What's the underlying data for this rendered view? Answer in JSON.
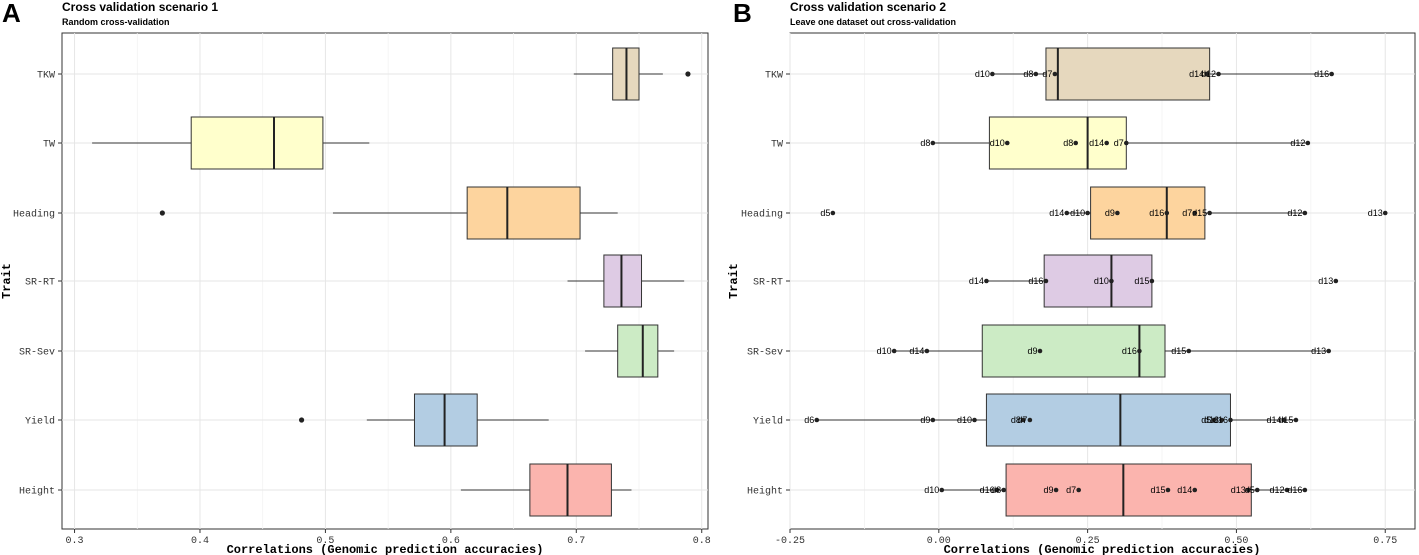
{
  "panels": [
    {
      "letter": "A",
      "title": "Cross validation scenario 1",
      "subtitle": "Random cross-validation",
      "xlabel": "Correlations (Genomic prediction accuracies)",
      "ylabel": "Trait"
    },
    {
      "letter": "B",
      "title": "Cross validation scenario 2",
      "subtitle": "Leave one dataset out cross-validation",
      "xlabel": "Correlations (Genomic prediction accuracies)",
      "ylabel": "Trait"
    }
  ],
  "colors": {
    "TKW": "#e6d8be",
    "TW": "#ffffcc",
    "Heading": "#fdd49e",
    "SR-RT": "#decbe4",
    "SR-Sev": "#ccebc5",
    "Yield": "#b3cde3",
    "Height": "#fbb4ae"
  },
  "chart_data": [
    {
      "type": "boxplot",
      "orientation": "horizontal",
      "title": "Cross validation scenario 1",
      "subtitle": "Random cross-validation",
      "xlabel": "Correlations (Genomic prediction accuracies)",
      "ylabel": "Trait",
      "xlim": [
        0.29,
        0.805
      ],
      "x_ticks": [
        0.3,
        0.4,
        0.5,
        0.6,
        0.7,
        0.8
      ],
      "x_tick_labels": [
        "0.3",
        "0.4",
        "0.5",
        "0.6",
        "0.7",
        "0.8"
      ],
      "categories": [
        "TKW",
        "TW",
        "Heading",
        "SR-RT",
        "SR-Sev",
        "Yield",
        "Height"
      ],
      "boxes": [
        {
          "trait": "TKW",
          "whisker_low": 0.698,
          "q1": 0.729,
          "median": 0.74,
          "q3": 0.75,
          "whisker_high": 0.769,
          "outliers": [
            0.789
          ]
        },
        {
          "trait": "TW",
          "whisker_low": 0.314,
          "q1": 0.393,
          "median": 0.459,
          "q3": 0.498,
          "whisker_high": 0.535,
          "outliers": []
        },
        {
          "trait": "Heading",
          "whisker_low": 0.506,
          "q1": 0.613,
          "median": 0.645,
          "q3": 0.703,
          "whisker_high": 0.733,
          "outliers": [
            0.37
          ]
        },
        {
          "trait": "SR-RT",
          "whisker_low": 0.693,
          "q1": 0.722,
          "median": 0.736,
          "q3": 0.752,
          "whisker_high": 0.786,
          "outliers": []
        },
        {
          "trait": "SR-Sev",
          "whisker_low": 0.707,
          "q1": 0.733,
          "median": 0.753,
          "q3": 0.765,
          "whisker_high": 0.778,
          "outliers": []
        },
        {
          "trait": "Yield",
          "whisker_low": 0.533,
          "q1": 0.571,
          "median": 0.595,
          "q3": 0.621,
          "whisker_high": 0.678,
          "outliers": [
            0.481
          ]
        },
        {
          "trait": "Height",
          "whisker_low": 0.608,
          "q1": 0.663,
          "median": 0.693,
          "q3": 0.728,
          "whisker_high": 0.744,
          "outliers": []
        }
      ]
    },
    {
      "type": "boxplot",
      "orientation": "horizontal",
      "title": "Cross validation scenario 2",
      "subtitle": "Leave one dataset out cross-validation",
      "xlabel": "Correlations (Genomic prediction accuracies)",
      "ylabel": "Trait",
      "xlim": [
        -0.25,
        0.8
      ],
      "x_ticks": [
        -0.25,
        0.0,
        0.25,
        0.5,
        0.75
      ],
      "x_tick_labels": [
        "-0.25",
        "0.00",
        "0.25",
        "0.50",
        "0.75"
      ],
      "categories": [
        "TKW",
        "TW",
        "Heading",
        "SR-RT",
        "SR-Sev",
        "Yield",
        "Height"
      ],
      "boxes": [
        {
          "trait": "TKW",
          "whisker_low": 0.09,
          "q1": 0.18,
          "median": 0.2,
          "q3": 0.455,
          "whisker_high": 0.66,
          "points": [
            {
              "label": "d10",
              "x": 0.09
            },
            {
              "label": "d8",
              "x": 0.163
            },
            {
              "label": "d7",
              "x": 0.195
            },
            {
              "label": "d14",
              "x": 0.45
            },
            {
              "label": "d12",
              "x": 0.47
            },
            {
              "label": "d16",
              "x": 0.66
            }
          ]
        },
        {
          "trait": "TW",
          "whisker_low": -0.01,
          "q1": 0.085,
          "median": 0.25,
          "q3": 0.315,
          "whisker_high": 0.62,
          "points": [
            {
              "label": "d8",
              "x": -0.01
            },
            {
              "label": "d10",
              "x": 0.115
            },
            {
              "label": "d8",
              "x": 0.23
            },
            {
              "label": "d14",
              "x": 0.282
            },
            {
              "label": "d7",
              "x": 0.315
            },
            {
              "label": "d12",
              "x": 0.62
            }
          ]
        },
        {
          "trait": "Heading",
          "whisker_low": 0.215,
          "q1": 0.255,
          "median": 0.383,
          "q3": 0.447,
          "whisker_high": 0.615,
          "points": [
            {
              "label": "d5",
              "x": -0.178
            },
            {
              "label": "d14",
              "x": 0.215
            },
            {
              "label": "d10",
              "x": 0.25
            },
            {
              "label": "d9",
              "x": 0.3
            },
            {
              "label": "d16",
              "x": 0.383
            },
            {
              "label": "d7",
              "x": 0.43
            },
            {
              "label": "d15",
              "x": 0.455
            },
            {
              "label": "d12",
              "x": 0.615
            },
            {
              "label": "d13",
              "x": 0.75
            }
          ]
        },
        {
          "trait": "SR-RT",
          "whisker_low": 0.08,
          "q1": 0.177,
          "median": 0.29,
          "q3": 0.358,
          "whisker_high": 0.358,
          "points": [
            {
              "label": "d14",
              "x": 0.08
            },
            {
              "label": "d16",
              "x": 0.18
            },
            {
              "label": "d10",
              "x": 0.29
            },
            {
              "label": "d15",
              "x": 0.358
            },
            {
              "label": "d13",
              "x": 0.667
            }
          ]
        },
        {
          "trait": "SR-Sev",
          "whisker_low": -0.075,
          "q1": 0.073,
          "median": 0.337,
          "q3": 0.38,
          "whisker_high": 0.655,
          "points": [
            {
              "label": "d10",
              "x": -0.075
            },
            {
              "label": "d14",
              "x": -0.02
            },
            {
              "label": "d9",
              "x": 0.17
            },
            {
              "label": "d16",
              "x": 0.337
            },
            {
              "label": "d15",
              "x": 0.42
            },
            {
              "label": "d13",
              "x": 0.655
            }
          ]
        },
        {
          "trait": "Yield",
          "whisker_low": -0.205,
          "q1": 0.08,
          "median": 0.305,
          "q3": 0.49,
          "whisker_high": 0.6,
          "points": [
            {
              "label": "d6",
              "x": -0.205
            },
            {
              "label": "d9",
              "x": -0.01
            },
            {
              "label": "d10",
              "x": 0.06
            },
            {
              "label": "d8",
              "x": 0.142
            },
            {
              "label": "d7",
              "x": 0.153
            },
            {
              "label": "d5",
              "x": 0.462
            },
            {
              "label": "d13",
              "x": 0.475
            },
            {
              "label": "d16",
              "x": 0.49
            },
            {
              "label": "d14",
              "x": 0.58
            },
            {
              "label": "d15",
              "x": 0.6
            }
          ]
        },
        {
          "trait": "Height",
          "whisker_low": 0.005,
          "q1": 0.113,
          "median": 0.31,
          "q3": 0.525,
          "whisker_high": 0.615,
          "points": [
            {
              "label": "d10",
              "x": 0.005
            },
            {
              "label": "d16",
              "x": 0.098
            },
            {
              "label": "d8",
              "x": 0.109
            },
            {
              "label": "d9",
              "x": 0.197
            },
            {
              "label": "d7",
              "x": 0.235
            },
            {
              "label": "d15",
              "x": 0.385
            },
            {
              "label": "d14",
              "x": 0.43
            },
            {
              "label": "d13",
              "x": 0.52
            },
            {
              "label": "d5",
              "x": 0.535
            },
            {
              "label": "d12",
              "x": 0.585
            },
            {
              "label": "d16",
              "x": 0.615
            }
          ]
        }
      ]
    }
  ]
}
